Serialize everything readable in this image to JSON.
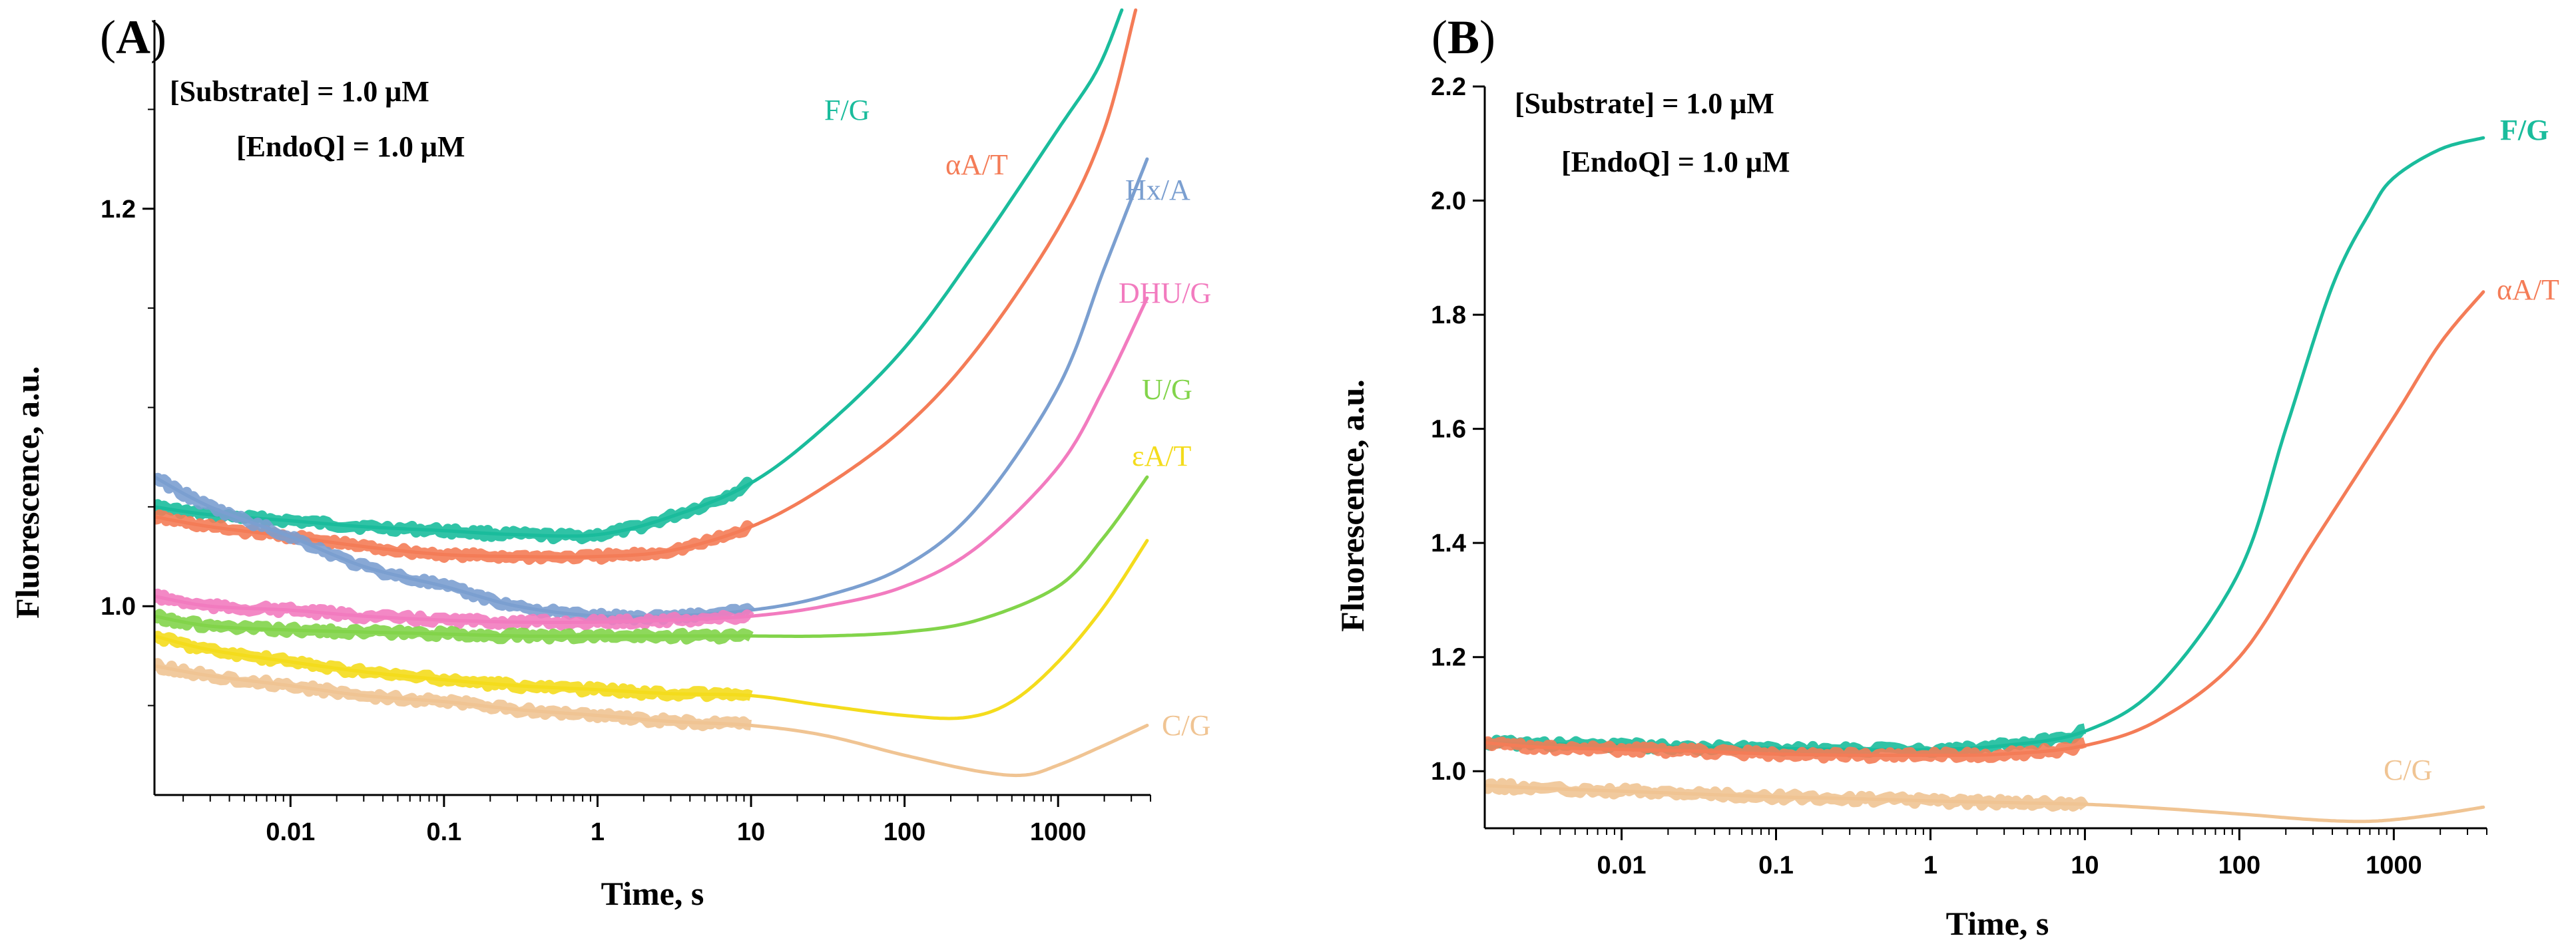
{
  "chart_data": [
    {
      "panel": "A",
      "panel_label": "(A)",
      "type": "line",
      "x_scale": "log",
      "xlabel": "Time, s",
      "ylabel": "Fluorescence, a.u.",
      "xlim": [
        0.0013,
        4000
      ],
      "ylim": [
        0.905,
        1.295
      ],
      "x_ticks": [
        0.01,
        0.1,
        1,
        10,
        100,
        1000
      ],
      "x_tick_labels": [
        "0.01",
        "0.1",
        "1",
        "10",
        "100",
        "1000"
      ],
      "y_ticks": [
        1.0,
        1.2
      ],
      "y_tick_labels": [
        "1.0",
        "1.2"
      ],
      "y_minor_ticks": [
        0.95,
        1.05,
        1.1,
        1.15,
        1.25
      ],
      "annotations": [
        "[Substrate] = 1.0 μM",
        "[EndoQ] = 1.0 μM"
      ],
      "grid": false,
      "series": [
        {
          "name": "F/G",
          "color": "#1abc9c",
          "label_anchor": [
            1.2,
            1.277
          ],
          "x": [
            0.0013,
            0.003,
            0.01,
            0.03,
            0.1,
            0.3,
            1,
            3,
            10,
            30,
            100,
            300,
            1000,
            1800,
            2600
          ],
          "y": [
            1.05,
            1.046,
            1.043,
            1.04,
            1.038,
            1.036,
            1.036,
            1.045,
            1.062,
            1.09,
            1.13,
            1.18,
            1.24,
            1.27,
            1.3
          ]
        },
        {
          "name": "αA/T",
          "color": "#f47c57",
          "label_anchor": [
            12,
            1.25
          ],
          "x": [
            0.0013,
            0.003,
            0.01,
            0.03,
            0.1,
            0.3,
            1,
            3,
            10,
            30,
            100,
            300,
            1000,
            2000,
            3200
          ],
          "y": [
            1.045,
            1.04,
            1.035,
            1.03,
            1.026,
            1.025,
            1.025,
            1.028,
            1.04,
            1.06,
            1.09,
            1.13,
            1.19,
            1.24,
            1.3
          ]
        },
        {
          "name": "Hx/A",
          "color": "#7b9fd0",
          "label_anchor": [
            70,
            1.222
          ],
          "x": [
            0.0013,
            0.003,
            0.01,
            0.03,
            0.1,
            0.3,
            1,
            3,
            10,
            30,
            100,
            300,
            1000,
            2000,
            3800
          ],
          "y": [
            1.065,
            1.05,
            1.035,
            1.02,
            1.01,
            1.0,
            0.995,
            0.995,
            0.998,
            1.005,
            1.02,
            1.05,
            1.11,
            1.17,
            1.225
          ]
        },
        {
          "name": "DHU/G",
          "color": "#f27bbf",
          "label_anchor": [
            70,
            1.16
          ],
          "x": [
            0.0013,
            0.003,
            0.01,
            0.03,
            0.1,
            0.3,
            1,
            3,
            10,
            30,
            100,
            300,
            1000,
            2000,
            3800
          ],
          "y": [
            1.005,
            1.0,
            0.998,
            0.995,
            0.993,
            0.992,
            0.992,
            0.993,
            0.995,
            1.0,
            1.01,
            1.03,
            1.07,
            1.11,
            1.155
          ]
        },
        {
          "name": "U/G",
          "color": "#82d44a",
          "label_anchor": [
            70,
            1.062
          ],
          "x": [
            0.0013,
            0.003,
            0.01,
            0.03,
            0.1,
            0.3,
            1,
            3,
            10,
            30,
            100,
            300,
            1000,
            2000,
            3800
          ],
          "y": [
            0.995,
            0.99,
            0.988,
            0.987,
            0.986,
            0.985,
            0.985,
            0.985,
            0.985,
            0.985,
            0.987,
            0.993,
            1.01,
            1.035,
            1.065
          ]
        },
        {
          "name": "εA/T",
          "color": "#f4dc1c",
          "label_anchor": [
            70,
            1.026
          ],
          "x": [
            0.0013,
            0.003,
            0.01,
            0.03,
            0.1,
            0.3,
            1,
            3,
            10,
            30,
            100,
            250,
            500,
            1000,
            2000,
            3800
          ],
          "y": [
            0.985,
            0.978,
            0.972,
            0.967,
            0.963,
            0.96,
            0.958,
            0.956,
            0.955,
            0.95,
            0.945,
            0.944,
            0.952,
            0.972,
            1.0,
            1.033
          ]
        },
        {
          "name": "C/G",
          "color": "#f0c493",
          "label_anchor": [
            70,
            0.958
          ],
          "x": [
            0.0013,
            0.003,
            0.01,
            0.03,
            0.1,
            0.3,
            1,
            3,
            10,
            30,
            100,
            300,
            600,
            1000,
            2000,
            3800
          ],
          "y": [
            0.97,
            0.965,
            0.96,
            0.955,
            0.952,
            0.948,
            0.945,
            0.942,
            0.94,
            0.935,
            0.925,
            0.917,
            0.915,
            0.92,
            0.93,
            0.94
          ]
        }
      ]
    },
    {
      "panel": "B",
      "panel_label": "(B)",
      "type": "line",
      "x_scale": "log",
      "xlabel": "Time, s",
      "ylabel": "Fluorescence, a.u.",
      "xlim": [
        0.0013,
        4000
      ],
      "ylim": [
        0.9,
        2.2
      ],
      "x_ticks": [
        0.01,
        0.1,
        1,
        10,
        100,
        1000
      ],
      "x_tick_labels": [
        "0.01",
        "0.1",
        "1",
        "10",
        "100",
        "1000"
      ],
      "y_ticks": [
        1.0,
        1.2,
        1.4,
        1.6,
        1.8,
        2.0,
        2.2
      ],
      "y_tick_labels": [
        "1.0",
        "1.2",
        "1.4",
        "1.6",
        "1.8",
        "2.0",
        "2.2"
      ],
      "annotations": [
        "[Substrate] = 1.0 μM",
        "[EndoQ] = 1.0 μM"
      ],
      "grid": false,
      "series": [
        {
          "name": "F/G",
          "color": "#1abc9c",
          "label_anchor": [
            0.0,
            2.11
          ],
          "x": [
            0.0013,
            0.003,
            0.01,
            0.03,
            0.1,
            0.3,
            1,
            3,
            10,
            30,
            100,
            200,
            400,
            700,
            1000,
            2000,
            3800
          ],
          "y": [
            1.05,
            1.048,
            1.045,
            1.042,
            1.04,
            1.038,
            1.038,
            1.045,
            1.07,
            1.15,
            1.35,
            1.6,
            1.85,
            1.98,
            2.04,
            2.09,
            2.11
          ]
        },
        {
          "name": "αA/T",
          "color": "#f47c57",
          "label_anchor": [
            0.0,
            1.85
          ],
          "x": [
            0.0013,
            0.003,
            0.01,
            0.03,
            0.1,
            0.3,
            1,
            3,
            10,
            30,
            100,
            300,
            1000,
            2000,
            3800
          ],
          "y": [
            1.05,
            1.042,
            1.038,
            1.035,
            1.03,
            1.028,
            1.028,
            1.03,
            1.045,
            1.09,
            1.2,
            1.4,
            1.62,
            1.75,
            1.84
          ]
        },
        {
          "name": "C/G",
          "color": "#f0c493",
          "label_anchor": [
            0.0,
            0.985
          ],
          "x": [
            0.0013,
            0.003,
            0.01,
            0.03,
            0.1,
            0.3,
            1,
            3,
            10,
            30,
            100,
            300,
            600,
            1000,
            2000,
            3800
          ],
          "y": [
            0.975,
            0.97,
            0.965,
            0.96,
            0.955,
            0.952,
            0.948,
            0.945,
            0.942,
            0.935,
            0.925,
            0.915,
            0.912,
            0.915,
            0.925,
            0.937
          ]
        }
      ]
    }
  ]
}
